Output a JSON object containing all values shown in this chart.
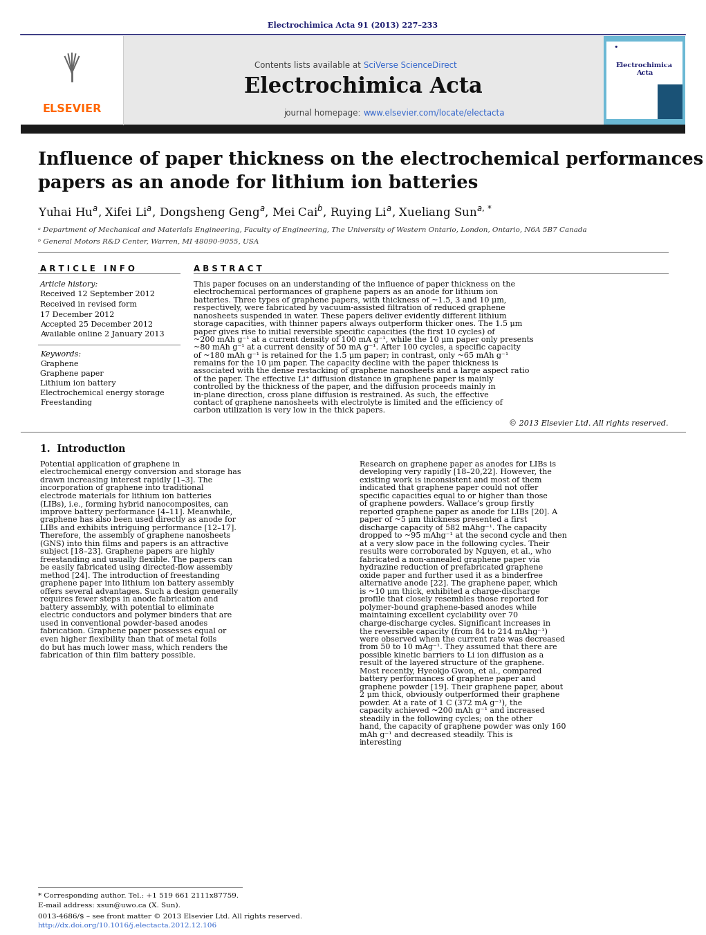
{
  "page_bg": "#ffffff",
  "dark_navy": "#1a1a6e",
  "elsevier_orange": "#ff6600",
  "link_blue": "#3366cc",
  "header_bg": "#e8e8e8",
  "journal_ref": "Electrochimica Acta 91 (2013) 227–233",
  "contents_prefix": "Contents lists available at ",
  "sciverse": "SciVerse ScienceDirect",
  "journal_name": "Electrochimica Acta",
  "journal_hp_prefix": "journal homepage: ",
  "journal_url": "www.elsevier.com/locate/electacta",
  "title_line1": "Influence of paper thickness on the electrochemical performances of graphene",
  "title_line2": "papers as an anode for lithium ion batteries",
  "author_line": "Yuhai Hu$^{a}$, Xifei Li$^{a}$, Dongsheng Geng$^{a}$, Mei Cai$^{b}$, Ruying Li$^{a}$, Xueliang Sun$^{a,*}$",
  "affil_a": "ᵃ Department of Mechanical and Materials Engineering, Faculty of Engineering, The University of Western Ontario, London, Ontario, N6A 5B7 Canada",
  "affil_b": "ᵇ General Motors R&D Center, Warren, MI 48090-9055, USA",
  "art_info": "A R T I C L E   I N F O",
  "abstract_hdr": "A B S T R A C T",
  "art_history_lbl": "Article history:",
  "rec1": "Received 12 September 2012",
  "rec2": "Received in revised form",
  "rec2b": "17 December 2012",
  "acc": "Accepted 25 December 2012",
  "avail": "Available online 2 January 2013",
  "kw_label": "Keywords:",
  "keywords": [
    "Graphene",
    "Graphene paper",
    "Lithium ion battery",
    "Electrochemical energy storage",
    "Freestanding"
  ],
  "abstract": "This paper focuses on an understanding of the influence of paper thickness on the electrochemical performances of graphene papers as an anode for lithium ion batteries. Three types of graphene papers, with thickness of ~1.5, 3 and 10 μm, respectively, were fabricated by vacuum-assisted filtration of reduced graphene nanosheets suspended in water. These papers deliver evidently different lithium storage capacities, with thinner papers always outperform thicker ones. The 1.5 μm paper gives rise to initial reversible specific capacities (the first 10 cycles) of ~200 mAh g⁻¹ at a current density of 100 mA g⁻¹, while the 10 μm paper only presents ~80 mAh g⁻¹ at a current density of 50 mA g⁻¹. After 100 cycles, a specific capacity of ~180 mAh g⁻¹ is retained for the 1.5 μm paper; in contrast, only ~65 mAh g⁻¹ remains for the 10 μm paper. The capacity decline with the paper thickness is associated with the dense restacking of graphene nanosheets and a large aspect ratio of the paper. The effective Li⁺ diffusion distance in graphene paper is mainly controlled by the thickness of the paper, and the diffusion proceeds mainly in in-plane direction, cross plane diffusion is restrained. As such, the effective contact of graphene nanosheets with electrolyte is limited and the efficiency of carbon utilization is very low in the thick papers.",
  "copyright": "© 2013 Elsevier Ltd. All rights reserved.",
  "sec1_title": "1.  Introduction",
  "col1_intro": "    Potential application of graphene in electrochemical energy conversion and storage has drawn increasing interest rapidly [1–3]. The incorporation of graphene into traditional electrode materials for lithium ion batteries (LIBs), i.e., forming hybrid nanocomposites, can improve battery performance [4–11]. Meanwhile, graphene has also been used directly as anode for LIBs and exhibits intriguing performance [12–17]. Therefore, the assembly of graphene nanosheets (GNS) into thin films and papers is an attractive subject [18–23]. Graphene papers are highly freestanding and usually flexible. The papers can be easily fabricated using directed-flow assembly method [24]. The introduction of freestanding graphene paper into lithium ion battery assembly offers several advantages. Such a design generally requires fewer steps in anode fabrication and battery assembly, with potential to eliminate electric conductors and polymer binders that are used in conventional powder-based anodes fabrication. Graphene paper possesses equal or even higher flexibility than that of metal foils do but has much lower mass, which renders the fabrication of thin film battery possible.",
  "col2_intro": "    Research on graphene paper as anodes for LIBs is developing very rapidly [18–20,22]. However, the existing work is inconsistent and most of them indicated that graphene paper could not offer specific capacities equal to or higher than those of graphene powders. Wallace’s group firstly reported graphene paper as anode for LIBs [20]. A paper of ~5 μm thickness presented a first discharge capacity of 582 mAhg⁻¹. The capacity dropped to ~95 mAhg⁻¹ at the second cycle and then at a very slow pace in the following cycles. Their results were corroborated by Nguyen, et al., who fabricated a non-annealed graphene paper via hydrazine reduction of prefabricated graphene oxide paper and further used it as a binderfree alternative anode [22]. The graphene paper, which is ~10 μm thick, exhibited a charge-discharge profile that closely resembles those reported for polymer-bound graphene-based anodes while maintaining excellent cyclability over 70 charge-discharge cycles. Significant increases in the reversible capacity (from 84 to 214 mAhg⁻¹) were observed when the current rate was decreased from 50 to 10 mAg⁻¹. They assumed that there are possible kinetic barriers to Li ion diffusion as a result of the layered structure of the graphene. Most recently, Hyeokjo Gwon, et al., compared battery performances of graphene paper and graphene powder [19]. Their graphene paper, about 2 μm thick, obviously outperformed their graphene powder. At a rate of 1 C (372 mA g⁻¹), the capacity achieved ~200 mAh g⁻¹ and increased steadily in the following cycles; on the other hand, the capacity of graphene powder was only 160 mAh g⁻¹ and decreased steadily. This is interesting",
  "footer1": "* Corresponding author. Tel.: +1 519 661 2111x87759.",
  "footer2": "E-mail address: xsun@uwo.ca (X. Sun).",
  "footer3": "0013-4686/$ – see front matter © 2013 Elsevier Ltd. All rights reserved.",
  "footer4": "http://dx.doi.org/10.1016/j.electacta.2012.12.106"
}
